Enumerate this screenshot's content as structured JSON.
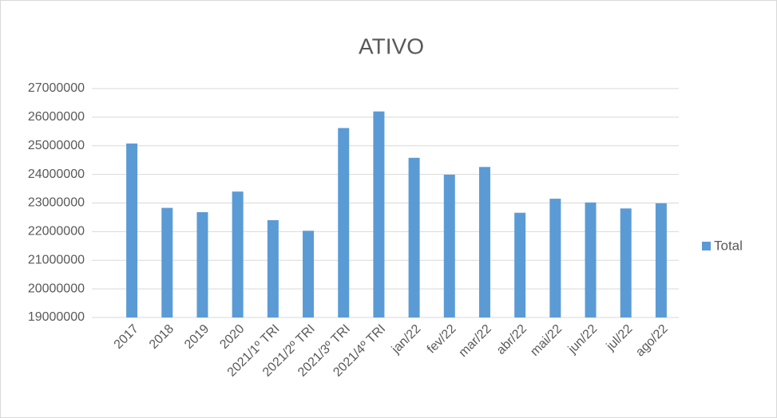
{
  "chart_data": {
    "type": "bar",
    "title": "ATIVO",
    "categories": [
      "2017",
      "2018",
      "2019",
      "2020",
      "2021/1º TRI",
      "2021/2º TRI",
      "2021/3º TRI",
      "2021/4º TRI",
      "jan/22",
      "fev/22",
      "mar/22",
      "abr/22",
      "mai/22",
      "jun/22",
      "jul/22",
      "ago/22"
    ],
    "series": [
      {
        "name": "Total",
        "color": "#5b9bd5",
        "values": [
          25080000,
          22830000,
          22680000,
          23400000,
          22400000,
          22030000,
          25620000,
          26200000,
          24580000,
          23990000,
          24260000,
          22660000,
          23150000,
          23020000,
          22810000,
          22990000
        ]
      }
    ],
    "ylim": [
      19000000,
      27000000
    ],
    "yticks": [
      19000000,
      20000000,
      21000000,
      22000000,
      23000000,
      24000000,
      25000000,
      26000000,
      27000000
    ],
    "grid": true,
    "legend": "right"
  }
}
